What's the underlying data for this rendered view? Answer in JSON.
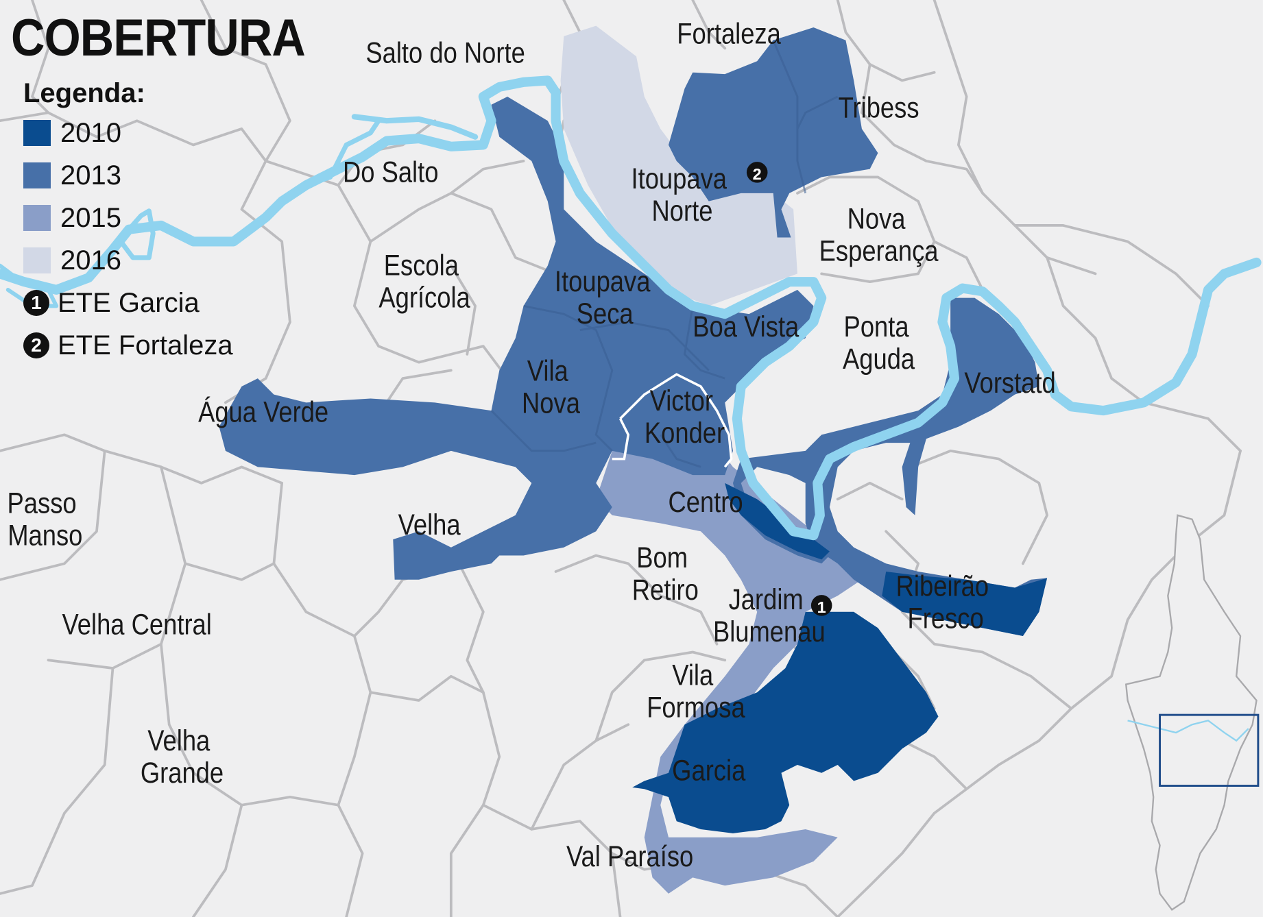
{
  "title": "COBERTURA",
  "legend": {
    "heading": "Legenda:",
    "items": [
      {
        "label": "2010",
        "color": "#0a4c8f"
      },
      {
        "label": "2013",
        "color": "#4770a8"
      },
      {
        "label": "2015",
        "color": "#8a9ec8"
      },
      {
        "label": "2016",
        "color": "#d2d8e6"
      }
    ],
    "markers": [
      {
        "number": "1",
        "label": "ETE Garcia"
      },
      {
        "number": "2",
        "label": "ETE Fortaleza"
      }
    ]
  },
  "map": {
    "land_color": "#efeff0",
    "border_color": "#bcbcbf",
    "river_color": "#8fd3ef",
    "locator_outline_color": "#1f4c8a",
    "neighborhoods": {
      "salto_do_norte": "Salto do Norte",
      "fortaleza": "Fortaleza",
      "tribess": "Tribess",
      "do_salto": "Do Salto",
      "itoupava_norte_1": "Itoupava",
      "itoupava_norte_2": "Norte",
      "nova_esperanca_1": "Nova",
      "nova_esperanca_2": "Esperança",
      "escola_agricola_1": "Escola",
      "escola_agricola_2": "Agrícola",
      "itoupava_seca_1": "Itoupava",
      "itoupava_seca_2": "Seca",
      "boa_vista": "Boa Vista",
      "ponta_aguda_1": "Ponta",
      "ponta_aguda_2": "Aguda",
      "vila_nova_1": "Vila",
      "vila_nova_2": "Nova",
      "vorstadt": "Vorstatd",
      "agua_verde": "Água Verde",
      "victor_konder_1": "Victor",
      "victor_konder_2": "Konder",
      "passo_manso_1": "Passo",
      "passo_manso_2": "Manso",
      "centro": "Centro",
      "velha": "Velha",
      "bom_retiro_1": "Bom",
      "bom_retiro_2": "Retiro",
      "jardim_blumenau_1": "Jardim",
      "jardim_blumenau_2": "Blumenau",
      "ribeirao_fresco_1": "Ribeirão",
      "ribeirao_fresco_2": "Fresco",
      "velha_central": "Velha Central",
      "vila_formosa_1": "Vila",
      "vila_formosa_2": "Formosa",
      "velha_grande_1": "Velha",
      "velha_grande_2": "Grande",
      "garcia": "Garcia",
      "val_paraiso": "Val Paraíso"
    },
    "ete_markers": [
      {
        "number": "1",
        "name": "ETE Garcia"
      },
      {
        "number": "2",
        "name": "ETE Fortaleza"
      }
    ]
  }
}
